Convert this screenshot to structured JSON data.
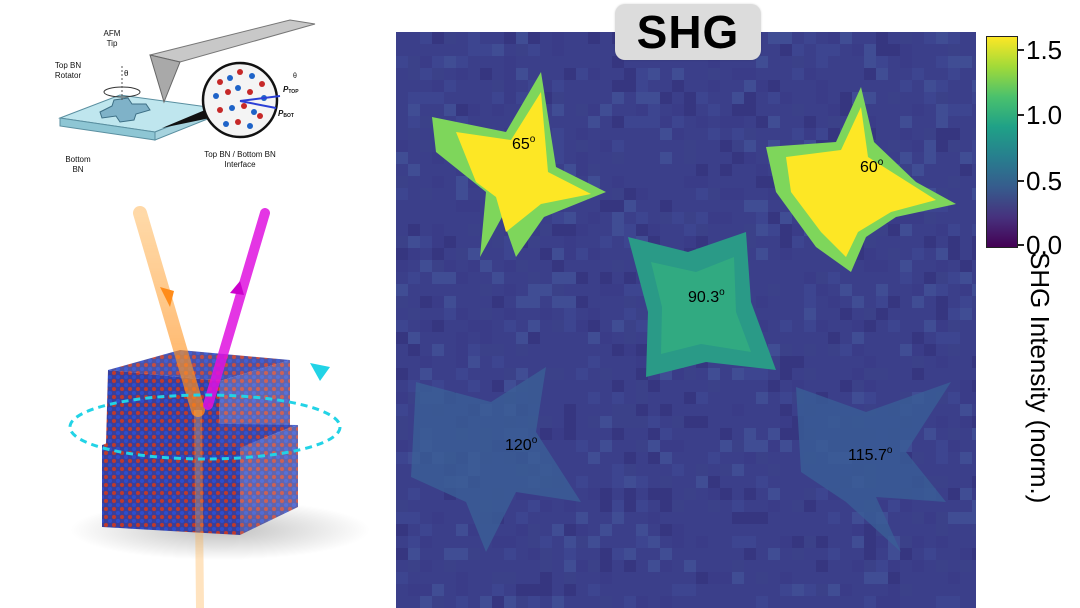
{
  "title": "SHG",
  "schematic": {
    "afm_tip_label": [
      "AFM",
      "Tip"
    ],
    "top_bn_label": [
      "Top BN",
      "Rotator"
    ],
    "bottom_bn_label": [
      "Bottom",
      "BN"
    ],
    "interface_label": [
      "Top BN / Bottom BN",
      "Interface"
    ],
    "theta": "θ",
    "p_top": "P",
    "p_top_sub": "TOP",
    "p_bot": "P",
    "p_bot_sub": "BOT"
  },
  "angles": [
    {
      "value": "65",
      "unit": "o"
    },
    {
      "value": "60",
      "unit": "o"
    },
    {
      "value": "90.3",
      "unit": "o"
    },
    {
      "value": "120",
      "unit": "o"
    },
    {
      "value": "115.7",
      "unit": "o"
    }
  ],
  "colorbar": {
    "label": "SHG Intensity  (norm.)",
    "ticks": [
      "1.5",
      "1.0",
      "0.5",
      "0.0"
    ]
  }
}
